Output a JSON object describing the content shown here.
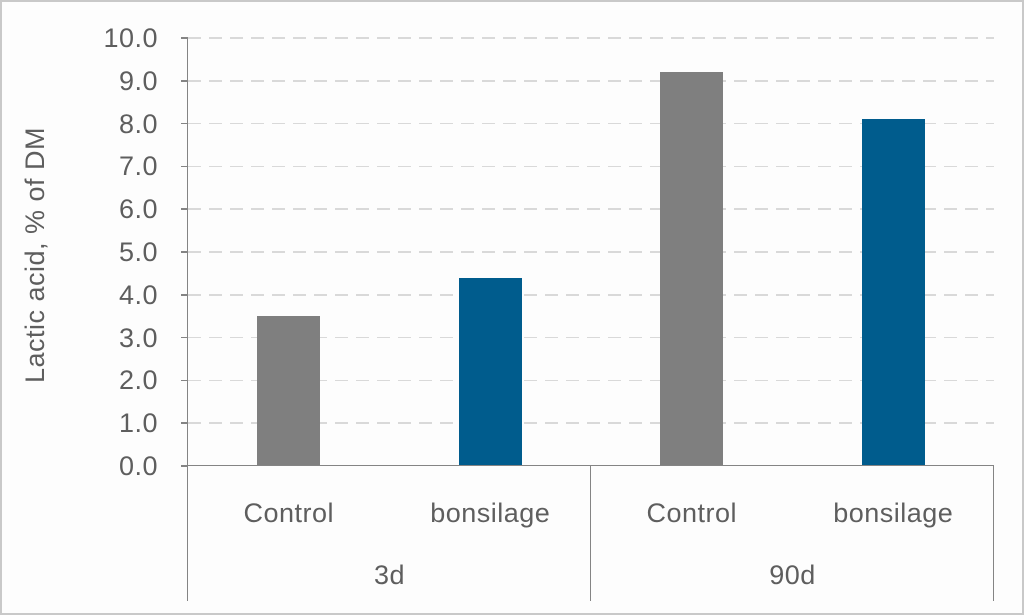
{
  "figure": {
    "background": "#fdfdfd",
    "border_color": "#c9c9c9"
  },
  "chart_data": {
    "type": "bar",
    "title": "",
    "ylabel": "Lactic acid, % of DM",
    "xlabel": "",
    "ylim": [
      0,
      10
    ],
    "ytick_step": 1.0,
    "ytick_labels": [
      "0.0",
      "1.0",
      "2.0",
      "3.0",
      "4.0",
      "5.0",
      "6.0",
      "7.0",
      "8.0",
      "9.0",
      "10.0"
    ],
    "grid": "horizontal-dashed",
    "legend_position": "none",
    "groups": [
      "3d",
      "90d"
    ],
    "series": [
      {
        "name": "Control",
        "color": "#7f7f7f",
        "values": [
          3.5,
          9.2
        ]
      },
      {
        "name": "bonsilage",
        "color": "#005c8d",
        "values": [
          4.4,
          8.1
        ]
      }
    ],
    "colors": {
      "grid": "#d9d9d9",
      "axis": "#848484",
      "text": "#5e5e5e"
    }
  }
}
